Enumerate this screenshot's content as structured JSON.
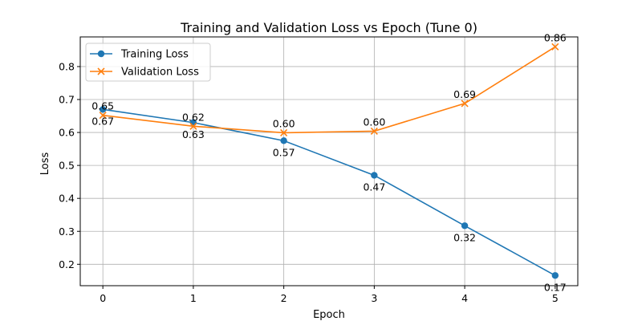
{
  "chart_data": {
    "type": "line",
    "title": "Training and Validation Loss vs Epoch (Tune 0)",
    "xlabel": "Epoch",
    "ylabel": "Loss",
    "x": [
      0,
      1,
      2,
      3,
      4,
      5
    ],
    "xticks": [
      "0",
      "1",
      "2",
      "3",
      "4",
      "5"
    ],
    "yticks": [
      "0.2",
      "0.3",
      "0.4",
      "0.5",
      "0.6",
      "0.7",
      "0.8"
    ],
    "xlim": [
      -0.25,
      5.25
    ],
    "ylim": [
      0.135,
      0.89
    ],
    "grid": true,
    "legend_position": "upper-left",
    "series": [
      {
        "name": "Training Loss",
        "color": "#1f77b4",
        "marker": "circle",
        "values": [
          0.67,
          0.63,
          0.575,
          0.47,
          0.317,
          0.166
        ],
        "labels": [
          "0.67",
          "0.63",
          "0.57",
          "0.47",
          "0.32",
          "0.17"
        ]
      },
      {
        "name": "Validation Loss",
        "color": "#ff7f0e",
        "marker": "x",
        "values": [
          0.652,
          0.619,
          0.599,
          0.604,
          0.688,
          0.86
        ],
        "labels": [
          "0.65",
          "0.62",
          "0.60",
          "0.60",
          "0.69",
          "0.86"
        ]
      }
    ]
  }
}
